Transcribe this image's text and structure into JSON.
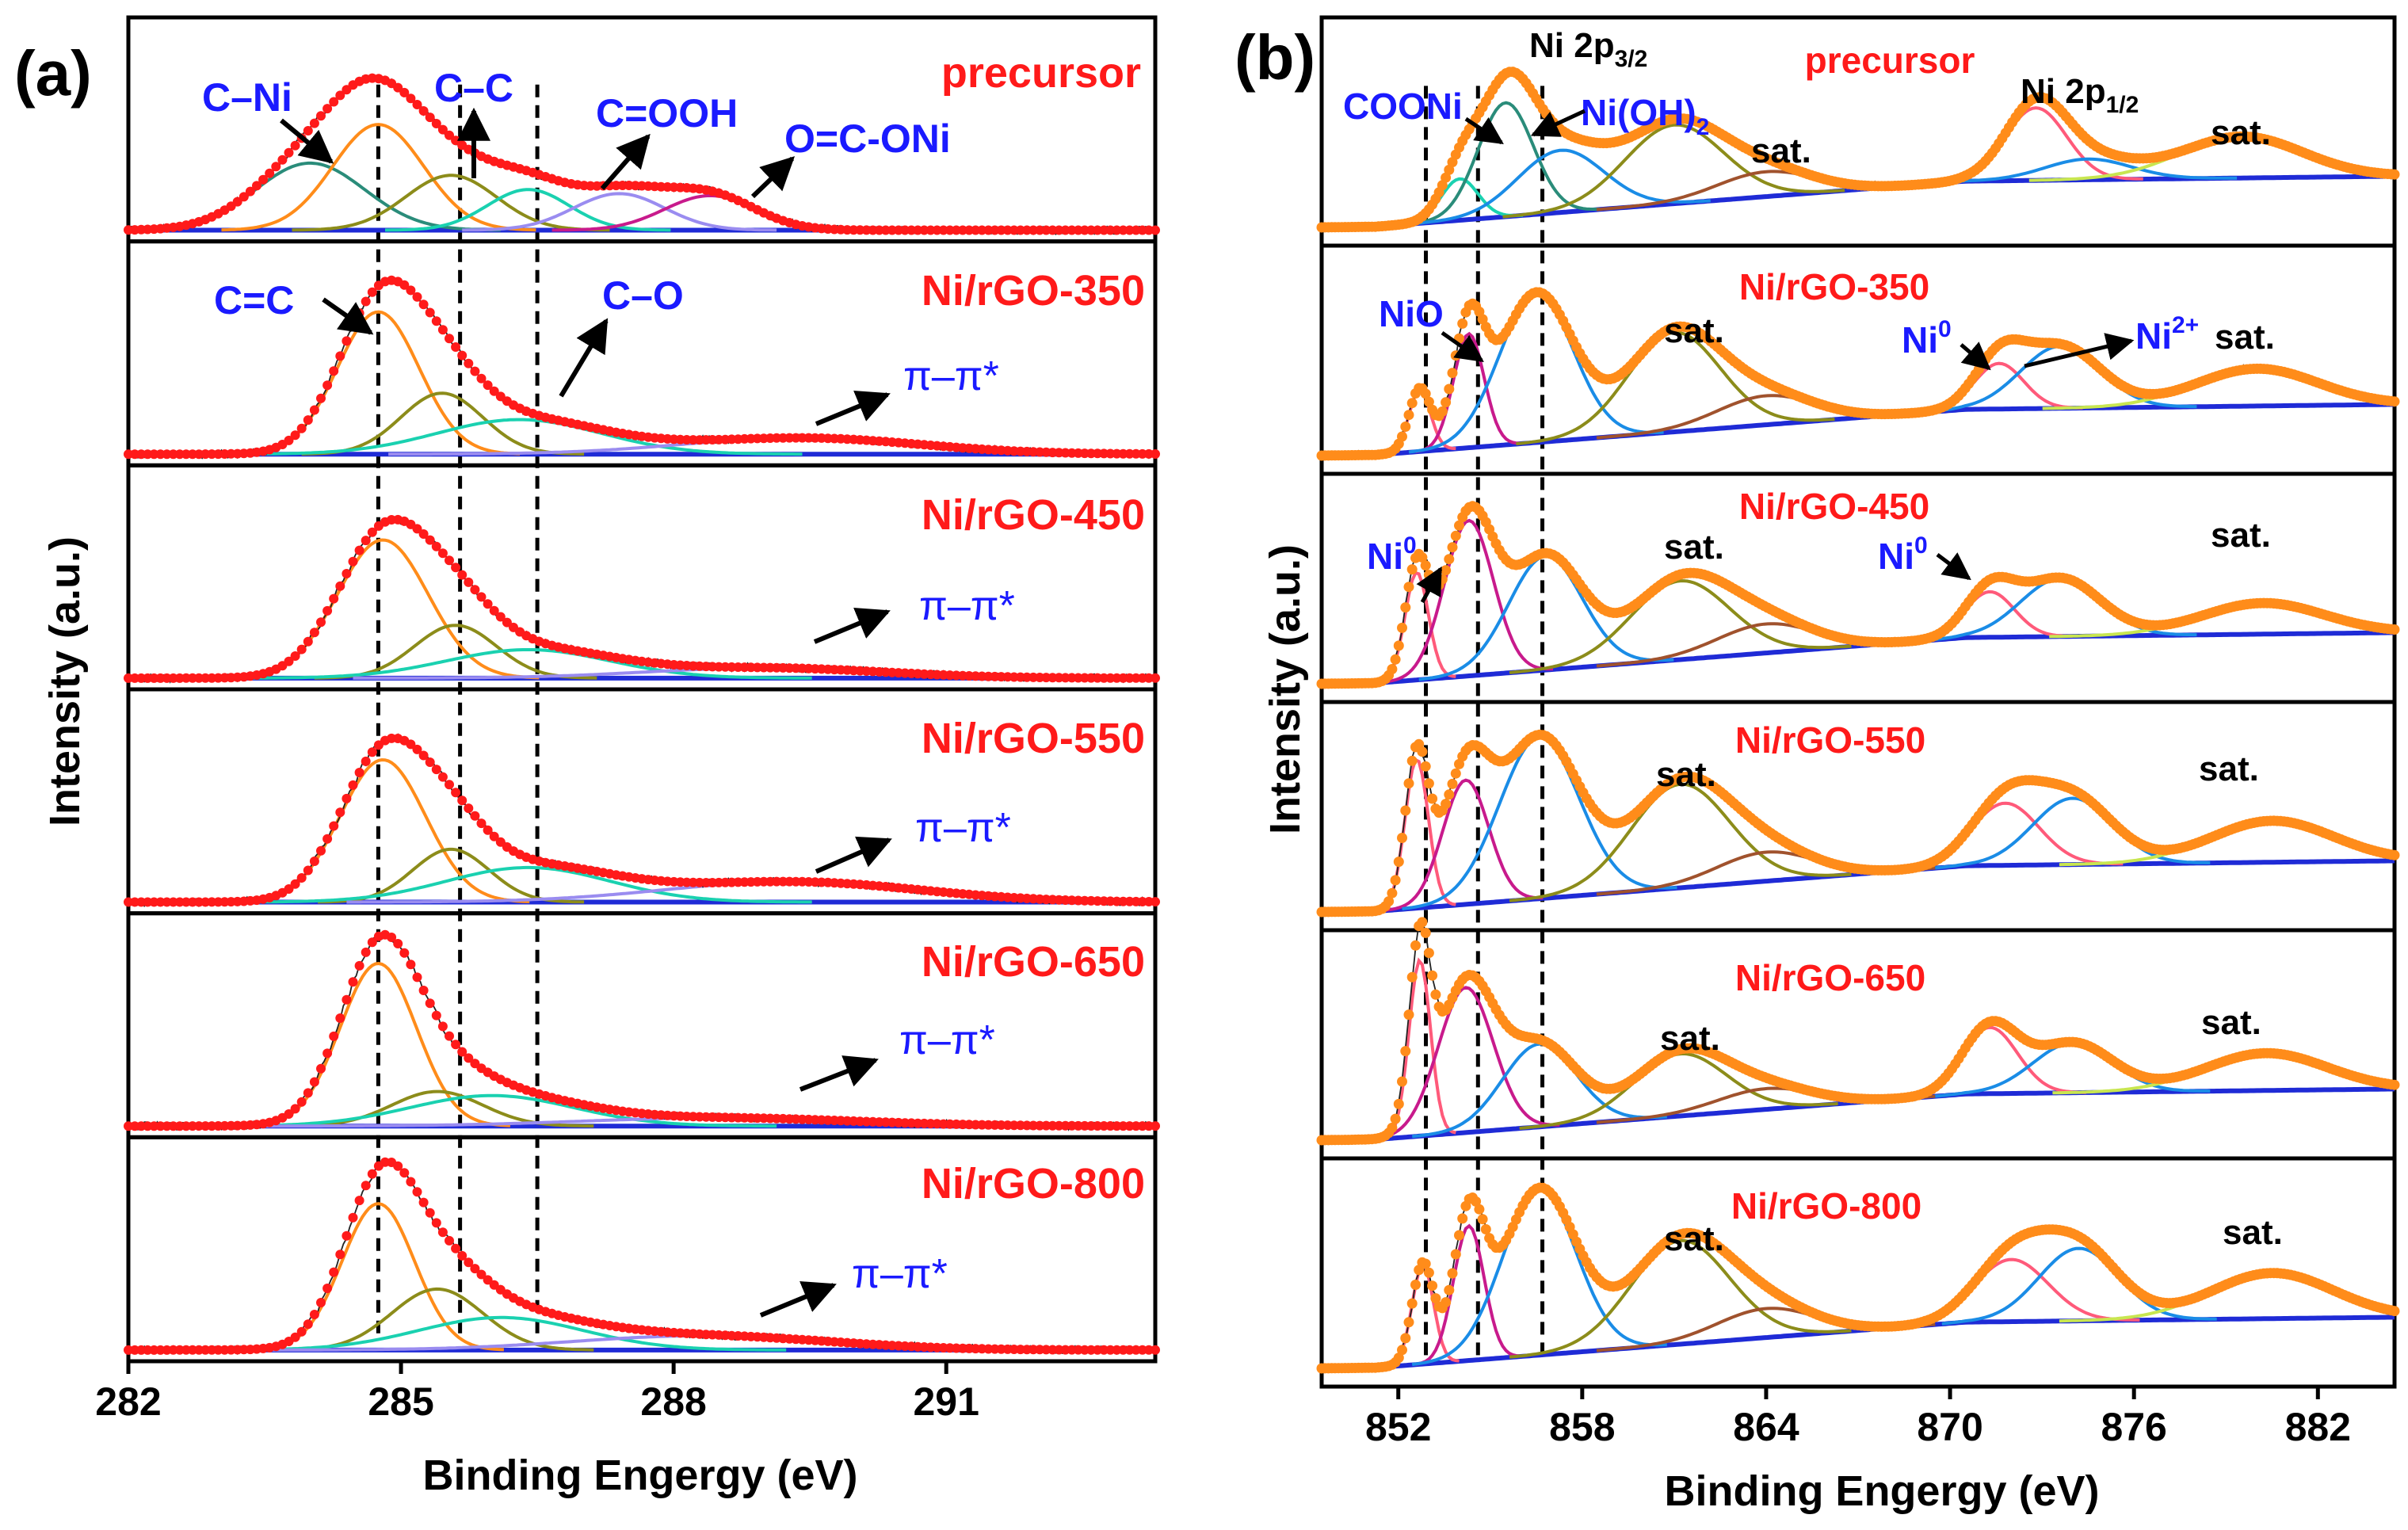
{
  "colors": {
    "data_dots_a": "#ff1a1a",
    "data_dots_b": "#ff8c1a",
    "raw_line": "#222222",
    "baseline": "#1f2bd6",
    "label_blue": "#1a1aff",
    "label_red": "#ff1a1a",
    "black": "#000000",
    "comp_orange": "#ff8c1a",
    "comp_teal": "#2a8c7a",
    "comp_olive": "#8c8c1a",
    "comp_cyan": "#1ad1b0",
    "comp_purple": "#9a8cf0",
    "comp_magenta": "#c81a8c",
    "comp_blue": "#1a8ce6",
    "comp_pink": "#ff5a7a",
    "comp_brown": "#a0522d",
    "comp_lime": "#c8e650"
  },
  "chart_data": [
    {
      "panel_label": "(a)",
      "type": "line",
      "title": "",
      "xlabel": "Binding Engergy (eV)",
      "ylabel": "Intensity (a.u.)",
      "xlim": [
        282,
        293.3
      ],
      "xticks": [
        282,
        285,
        288,
        291
      ],
      "tick_labels": [
        "282",
        "285",
        "288",
        "291"
      ],
      "reference_lines": [
        284.75,
        285.65,
        286.5
      ],
      "components_all": [
        {
          "name": "C–Ni",
          "center": 284.0,
          "color": "comp_teal"
        },
        {
          "name": "C=C",
          "center": 284.75,
          "color": "comp_orange"
        },
        {
          "name": "C–C",
          "center": 285.5,
          "color": "comp_olive"
        },
        {
          "name": "C–O",
          "center": 286.4,
          "color": "comp_cyan"
        },
        {
          "name": "C=OOH",
          "center": 287.4,
          "color": "comp_purple"
        },
        {
          "name": "O=C-ONi",
          "center": 288.4,
          "color": "comp_magenta"
        },
        {
          "name": "π–π*",
          "center": 289.5,
          "color": "comp_purple"
        }
      ],
      "series": [
        {
          "name": "precursor",
          "components": [
            {
              "center": 284.0,
              "height": 0.33,
              "width": 0.6,
              "color": "comp_teal"
            },
            {
              "center": 284.75,
              "height": 0.52,
              "width": 0.5,
              "color": "comp_orange"
            },
            {
              "center": 285.55,
              "height": 0.27,
              "width": 0.5,
              "color": "comp_olive"
            },
            {
              "center": 286.4,
              "height": 0.2,
              "width": 0.45,
              "color": "comp_cyan"
            },
            {
              "center": 287.4,
              "height": 0.18,
              "width": 0.5,
              "color": "comp_purple"
            },
            {
              "center": 288.4,
              "height": 0.17,
              "width": 0.5,
              "color": "comp_magenta"
            }
          ]
        },
        {
          "name": "Ni/rGO-350",
          "components": [
            {
              "center": 284.75,
              "height": 0.7,
              "width": 0.45,
              "color": "comp_orange"
            },
            {
              "center": 285.45,
              "height": 0.3,
              "width": 0.45,
              "color": "comp_olive"
            },
            {
              "center": 286.3,
              "height": 0.17,
              "width": 0.9,
              "color": "comp_cyan"
            },
            {
              "center": 289.4,
              "height": 0.08,
              "width": 1.3,
              "color": "comp_purple"
            }
          ]
        },
        {
          "name": "Ni/rGO-450",
          "components": [
            {
              "center": 284.8,
              "height": 0.68,
              "width": 0.5,
              "color": "comp_orange"
            },
            {
              "center": 285.6,
              "height": 0.26,
              "width": 0.45,
              "color": "comp_olive"
            },
            {
              "center": 286.4,
              "height": 0.14,
              "width": 0.9,
              "color": "comp_cyan"
            },
            {
              "center": 289.0,
              "height": 0.05,
              "width": 1.3,
              "color": "comp_purple"
            }
          ]
        },
        {
          "name": "Ni/rGO-550",
          "components": [
            {
              "center": 284.8,
              "height": 0.7,
              "width": 0.47,
              "color": "comp_orange"
            },
            {
              "center": 285.55,
              "height": 0.26,
              "width": 0.42,
              "color": "comp_olive"
            },
            {
              "center": 286.4,
              "height": 0.17,
              "width": 0.9,
              "color": "comp_cyan"
            },
            {
              "center": 289.3,
              "height": 0.1,
              "width": 1.4,
              "color": "comp_purple"
            }
          ]
        },
        {
          "name": "Ni/rGO-650",
          "components": [
            {
              "center": 284.75,
              "height": 0.8,
              "width": 0.42,
              "color": "comp_orange"
            },
            {
              "center": 285.4,
              "height": 0.17,
              "width": 0.5,
              "color": "comp_olive"
            },
            {
              "center": 286.0,
              "height": 0.15,
              "width": 0.9,
              "color": "comp_cyan"
            },
            {
              "center": 288.5,
              "height": 0.04,
              "width": 1.5,
              "color": "comp_purple"
            }
          ]
        },
        {
          "name": "Ni/rGO-800",
          "components": [
            {
              "center": 284.75,
              "height": 0.72,
              "width": 0.4,
              "color": "comp_orange"
            },
            {
              "center": 285.4,
              "height": 0.3,
              "width": 0.5,
              "color": "comp_olive"
            },
            {
              "center": 286.1,
              "height": 0.16,
              "width": 0.9,
              "color": "comp_cyan"
            },
            {
              "center": 288.3,
              "height": 0.07,
              "width": 1.4,
              "color": "comp_purple"
            }
          ]
        }
      ]
    },
    {
      "panel_label": "(b)",
      "type": "line",
      "title": "",
      "xlabel": "Binding Engergy (eV)",
      "ylabel": "Intensity (a.u.)",
      "xlim": [
        849.5,
        884.5
      ],
      "xticks": [
        852,
        858,
        864,
        870,
        876,
        882
      ],
      "tick_labels": [
        "852",
        "858",
        "864",
        "870",
        "876",
        "882"
      ],
      "reference_lines": [
        852.9,
        854.6,
        856.7
      ],
      "series": [
        {
          "name": "precursor",
          "components": [
            {
              "center": 854.0,
              "height": 0.2,
              "width": 0.6,
              "color": "comp_cyan"
            },
            {
              "center": 855.5,
              "height": 0.55,
              "width": 0.9,
              "color": "comp_teal"
            },
            {
              "center": 857.3,
              "height": 0.3,
              "width": 1.4,
              "color": "comp_blue"
            },
            {
              "center": 861.0,
              "height": 0.38,
              "width": 1.6,
              "color": "comp_olive"
            },
            {
              "center": 864.0,
              "height": 0.12,
              "width": 1.6,
              "color": "comp_brown"
            },
            {
              "center": 872.8,
              "height": 0.35,
              "width": 1.0,
              "color": "comp_pink"
            },
            {
              "center": 874.5,
              "height": 0.1,
              "width": 1.4,
              "color": "comp_blue"
            },
            {
              "center": 879.5,
              "height": 0.2,
              "width": 2.0,
              "color": "comp_lime"
            }
          ]
        },
        {
          "name": "Ni/rGO-350",
          "components": [
            {
              "center": 852.7,
              "height": 0.3,
              "width": 0.35,
              "color": "comp_pink"
            },
            {
              "center": 854.3,
              "height": 0.55,
              "width": 0.5,
              "color": "comp_magenta"
            },
            {
              "center": 856.5,
              "height": 0.72,
              "width": 1.2,
              "color": "comp_blue"
            },
            {
              "center": 861.0,
              "height": 0.48,
              "width": 1.5,
              "color": "comp_olive"
            },
            {
              "center": 864.0,
              "height": 0.14,
              "width": 1.6,
              "color": "comp_brown"
            },
            {
              "center": 871.6,
              "height": 0.22,
              "width": 0.8,
              "color": "comp_pink"
            },
            {
              "center": 873.6,
              "height": 0.3,
              "width": 1.3,
              "color": "comp_blue"
            },
            {
              "center": 880.0,
              "height": 0.18,
              "width": 2.0,
              "color": "comp_lime"
            }
          ]
        },
        {
          "name": "Ni/rGO-450",
          "components": [
            {
              "center": 852.6,
              "height": 0.52,
              "width": 0.38,
              "color": "comp_pink"
            },
            {
              "center": 854.3,
              "height": 0.75,
              "width": 0.8,
              "color": "comp_magenta"
            },
            {
              "center": 856.8,
              "height": 0.55,
              "width": 1.2,
              "color": "comp_blue"
            },
            {
              "center": 861.2,
              "height": 0.38,
              "width": 1.6,
              "color": "comp_olive"
            },
            {
              "center": 864.0,
              "height": 0.14,
              "width": 1.6,
              "color": "comp_brown"
            },
            {
              "center": 871.3,
              "height": 0.22,
              "width": 0.8,
              "color": "comp_pink"
            },
            {
              "center": 873.6,
              "height": 0.28,
              "width": 1.3,
              "color": "comp_blue"
            },
            {
              "center": 880.2,
              "height": 0.15,
              "width": 2.0,
              "color": "comp_lime"
            }
          ]
        },
        {
          "name": "Ni/rGO-550",
          "components": [
            {
              "center": 852.6,
              "height": 0.72,
              "width": 0.38,
              "color": "comp_pink"
            },
            {
              "center": 854.2,
              "height": 0.6,
              "width": 0.75,
              "color": "comp_magenta"
            },
            {
              "center": 856.6,
              "height": 0.78,
              "width": 1.3,
              "color": "comp_blue"
            },
            {
              "center": 861.2,
              "height": 0.5,
              "width": 1.6,
              "color": "comp_olive"
            },
            {
              "center": 864.0,
              "height": 0.14,
              "width": 1.6,
              "color": "comp_brown"
            },
            {
              "center": 871.8,
              "height": 0.3,
              "width": 1.1,
              "color": "comp_pink"
            },
            {
              "center": 874.0,
              "height": 0.32,
              "width": 1.3,
              "color": "comp_blue"
            },
            {
              "center": 880.5,
              "height": 0.2,
              "width": 2.0,
              "color": "comp_lime"
            }
          ]
        },
        {
          "name": "Ni/rGO-650",
          "components": [
            {
              "center": 852.7,
              "height": 0.85,
              "width": 0.35,
              "color": "comp_pink"
            },
            {
              "center": 854.2,
              "height": 0.7,
              "width": 0.9,
              "color": "comp_magenta"
            },
            {
              "center": 856.6,
              "height": 0.4,
              "width": 1.2,
              "color": "comp_blue"
            },
            {
              "center": 861.2,
              "height": 0.3,
              "width": 1.5,
              "color": "comp_olive"
            },
            {
              "center": 864.0,
              "height": 0.1,
              "width": 1.6,
              "color": "comp_brown"
            },
            {
              "center": 871.3,
              "height": 0.32,
              "width": 0.9,
              "color": "comp_pink"
            },
            {
              "center": 874.0,
              "height": 0.24,
              "width": 1.3,
              "color": "comp_blue"
            },
            {
              "center": 880.3,
              "height": 0.18,
              "width": 2.0,
              "color": "comp_lime"
            }
          ]
        },
        {
          "name": "Ni/rGO-800",
          "components": [
            {
              "center": 852.8,
              "height": 0.48,
              "width": 0.35,
              "color": "comp_pink"
            },
            {
              "center": 854.3,
              "height": 0.65,
              "width": 0.5,
              "color": "comp_magenta"
            },
            {
              "center": 856.6,
              "height": 0.8,
              "width": 1.2,
              "color": "comp_blue"
            },
            {
              "center": 861.2,
              "height": 0.5,
              "width": 1.6,
              "color": "comp_olive"
            },
            {
              "center": 864.0,
              "height": 0.14,
              "width": 1.6,
              "color": "comp_brown"
            },
            {
              "center": 872.0,
              "height": 0.3,
              "width": 1.2,
              "color": "comp_pink"
            },
            {
              "center": 874.2,
              "height": 0.35,
              "width": 1.3,
              "color": "comp_blue"
            },
            {
              "center": 880.5,
              "height": 0.22,
              "width": 2.0,
              "color": "comp_lime"
            }
          ]
        }
      ]
    }
  ],
  "labels": {
    "panel_a": "(a)",
    "panel_b": "(b)",
    "ylabel": "Intensity (a.u.)",
    "xlabel_a": "Binding Engergy (eV)",
    "xlabel_b": "Binding Engergy (eV)",
    "a_series": [
      "precursor",
      "Ni/rGO-350",
      "Ni/rGO-450",
      "Ni/rGO-550",
      "Ni/rGO-650",
      "Ni/rGO-800"
    ],
    "b_series": [
      "precursor",
      "Ni/rGO-350",
      "Ni/rGO-450",
      "Ni/rGO-550",
      "Ni/rGO-650",
      "Ni/rGO-800"
    ],
    "c_ni": "C–Ni",
    "c_c": "C–C",
    "c_ooh": "C=OOH",
    "o_c_oni": "O=C-ONi",
    "c_eq_c": "C=C",
    "c_o": "C–O",
    "pi_pi": "π–π*",
    "ni_2p32": "Ni 2p",
    "ni_2p32_sub": "3/2",
    "ni_2p12": "Ni 2p",
    "ni_2p12_sub": "1/2",
    "cooni": "COONi",
    "ni_oh2": "Ni(OH)",
    "ni_oh2_sub": "2",
    "sat": "sat.",
    "nio": "NiO",
    "ni0": "Ni",
    "ni0_sup": "0",
    "ni2plus": "Ni",
    "ni2plus_sup": "2+"
  }
}
